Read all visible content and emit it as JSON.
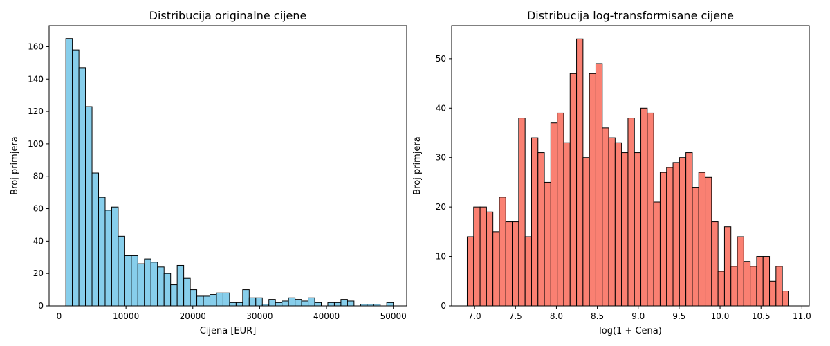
{
  "chart_data": [
    {
      "type": "bar",
      "title": "Distribucija originalne cijene",
      "xlabel": "Cijena [EUR]",
      "ylabel": "Broj primjera",
      "xlim": [
        -1500,
        52000
      ],
      "ylim": [
        0,
        173
      ],
      "xticks": [
        0,
        10000,
        20000,
        30000,
        40000,
        50000
      ],
      "yticks": [
        0,
        20,
        40,
        60,
        80,
        100,
        120,
        140,
        160
      ],
      "bin_start": 1000,
      "bin_width": 980,
      "values": [
        165,
        158,
        147,
        123,
        82,
        67,
        59,
        61,
        43,
        31,
        31,
        26,
        29,
        27,
        24,
        20,
        13,
        25,
        17,
        10,
        6,
        6,
        7,
        8,
        8,
        2,
        2,
        10,
        5,
        5,
        1,
        4,
        2,
        3,
        5,
        4,
        3,
        5,
        2,
        0,
        2,
        2,
        4,
        3,
        0,
        1,
        1,
        1,
        0,
        2
      ],
      "color": "#87ceeb"
    },
    {
      "type": "bar",
      "title": "Distribucija log-transformisane cijene",
      "xlabel": "log(1 + Cena)",
      "ylabel": "Broj primjera",
      "xlim": [
        6.72,
        11.09
      ],
      "ylim": [
        0,
        56.7
      ],
      "xticks": [
        7.0,
        7.5,
        8.0,
        8.5,
        9.0,
        9.5,
        10.0,
        10.5,
        11.0
      ],
      "yticks": [
        0,
        10,
        20,
        30,
        40,
        50
      ],
      "bin_start": 6.91,
      "bin_width": 0.0786,
      "values": [
        14,
        20,
        20,
        19,
        15,
        22,
        17,
        17,
        38,
        14,
        34,
        31,
        25,
        37,
        39,
        33,
        47,
        54,
        30,
        47,
        49,
        36,
        34,
        33,
        31,
        38,
        31,
        40,
        39,
        21,
        27,
        28,
        29,
        30,
        31,
        24,
        27,
        26,
        17,
        7,
        16,
        8,
        14,
        9,
        8,
        10,
        10,
        5,
        8,
        3
      ],
      "color": "#fa8072"
    }
  ]
}
